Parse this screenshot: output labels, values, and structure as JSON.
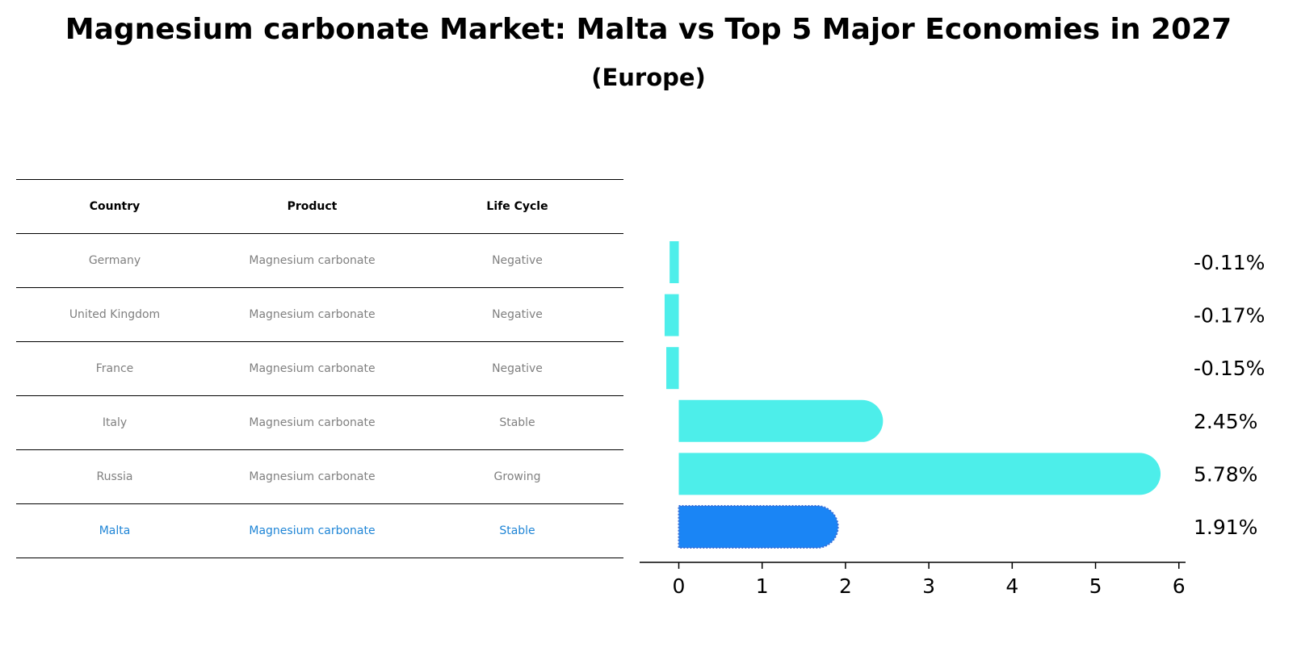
{
  "title": "Magnesium carbonate Market: Malta vs Top 5 Major Economies in 2027",
  "subtitle": "(Europe)",
  "table": {
    "headers": [
      "Country",
      "Product",
      "Life Cycle"
    ],
    "rows": [
      {
        "country": "Germany",
        "product": "Magnesium carbonate",
        "life_cycle": "Negative"
      },
      {
        "country": "United Kingdom",
        "product": "Magnesium carbonate",
        "life_cycle": "Negative"
      },
      {
        "country": "France",
        "product": "Magnesium carbonate",
        "life_cycle": "Negative"
      },
      {
        "country": "Italy",
        "product": "Magnesium carbonate",
        "life_cycle": "Stable"
      },
      {
        "country": "Russia",
        "product": "Magnesium carbonate",
        "life_cycle": "Growing"
      },
      {
        "country": "Malta",
        "product": "Magnesium carbonate",
        "life_cycle": "Stable"
      }
    ]
  },
  "colors": {
    "bar": "#4deeea",
    "highlight_bar": "#1a85f5",
    "highlight_text": "#1f85d6",
    "row_text": "#808080"
  },
  "chart_data": {
    "type": "bar",
    "orientation": "horizontal",
    "categories": [
      "Germany",
      "United Kingdom",
      "France",
      "Italy",
      "Russia",
      "Malta"
    ],
    "values": [
      -0.11,
      -0.17,
      -0.15,
      2.45,
      5.78,
      1.91
    ],
    "value_labels": [
      "-0.11%",
      "-0.17%",
      "-0.15%",
      "2.45%",
      "5.78%",
      "1.91%"
    ],
    "highlight": "Malta",
    "xlim": [
      -0.47,
      6.08
    ],
    "xticks": [
      0,
      1,
      2,
      3,
      4,
      5,
      6
    ],
    "grid": false
  }
}
